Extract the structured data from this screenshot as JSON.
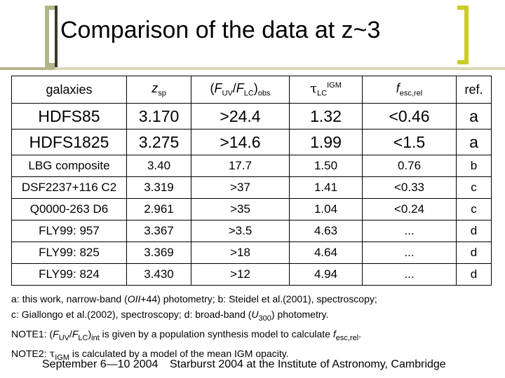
{
  "title": "Comparison of the data at z~3",
  "columns": {
    "galaxies": "galaxies",
    "zsp_main": "z",
    "zsp_sub": "sp",
    "flux_open": "(",
    "flux_F1": "F",
    "flux_sub1": "UV",
    "flux_slash": "/",
    "flux_F2": "F",
    "flux_sub2": "LC",
    "flux_close": ")",
    "flux_sub3": "obs",
    "tau_sym": "τ",
    "tau_sub": "LC",
    "tau_sup": "IGM",
    "fesc_main": "f",
    "fesc_sub": "esc,rel",
    "ref": "ref."
  },
  "big_rows": [
    {
      "name": "HDFS85",
      "z": "3.170",
      "flux": ">24.4",
      "tau": "1.32",
      "fesc": "<0.46",
      "ref": "a"
    },
    {
      "name": "HDFS1825",
      "z": "3.275",
      "flux": ">14.6",
      "tau": "1.99",
      "fesc": "<1.5",
      "ref": "a"
    }
  ],
  "rows": [
    {
      "name": "LBG composite",
      "z": "3.40",
      "flux": "17.7",
      "tau": "1.50",
      "fesc": "0.76",
      "ref": "b"
    },
    {
      "name": "DSF2237+116 C2",
      "z": "3.319",
      "flux": ">37",
      "tau": "1.41",
      "fesc": "<0.33",
      "ref": "c"
    },
    {
      "name": "Q0000-263 D6",
      "z": "2.961",
      "flux": ">35",
      "tau": "1.04",
      "fesc": "<0.24",
      "ref": "c"
    },
    {
      "name": "FLY99: 957",
      "z": "3.367",
      "flux": ">3.5",
      "tau": "4.63",
      "fesc": "...",
      "ref": "d"
    },
    {
      "name": "FLY99: 825",
      "z": "3.369",
      "flux": ">18",
      "tau": "4.64",
      "fesc": "...",
      "ref": "d"
    },
    {
      "name": "FLY99: 824",
      "z": "3.430",
      "flux": ">12",
      "tau": "4.94",
      "fesc": "...",
      "ref": "d"
    }
  ],
  "notes": {
    "l1a": "a: this work, narrow-band (",
    "l1b": "OII",
    "l1c": "+44) photometry; b: Steidel et al.(2001), spectroscopy;",
    "l2a": "c: Giallongo et al.(2002), spectroscopy; d: broad-band (",
    "l2b": "U",
    "l2c": "300",
    "l2d": ") photometry.",
    "l3a": "NOTE1: (",
    "l3b": "F",
    "l3c": "UV",
    "l3d": "/",
    "l3e": "F",
    "l3f": "LC",
    "l3g": ")",
    "l3h": "int",
    "l3i": " is given by a population synthesis model to calculate ",
    "l3j": "f",
    "l3k": "esc,rel",
    "l3l": ".",
    "l4a": "NOTE2: ",
    "l4b": "τ",
    "l4c": "IGM",
    "l4d": " is calculated by a model of the mean IGM opacity."
  },
  "footer": {
    "date": "September 6—10 2004",
    "event": "Starburst 2004 at the Institute of Astronomy, Cambridge"
  }
}
